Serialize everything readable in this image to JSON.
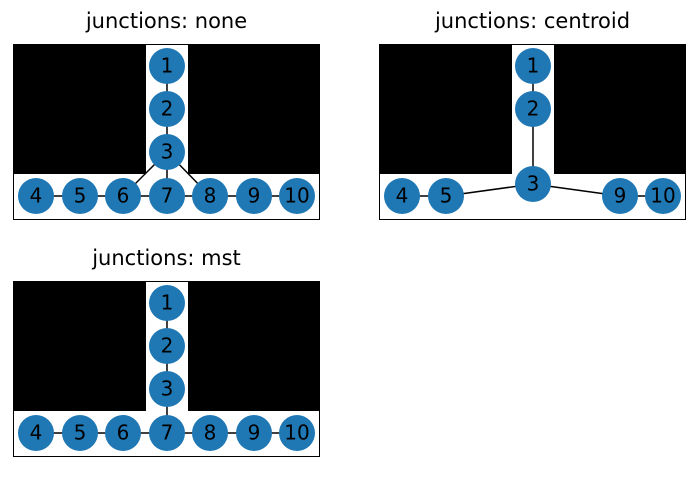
{
  "colors": {
    "node": "#1f77b4",
    "wall": "#000000",
    "free": "#ffffff",
    "edge": "#000000"
  },
  "panels": [
    {
      "title": "junctions: none",
      "nodes": [
        {
          "id": "1",
          "label": "1"
        },
        {
          "id": "2",
          "label": "2"
        },
        {
          "id": "3",
          "label": "3"
        },
        {
          "id": "4",
          "label": "4"
        },
        {
          "id": "5",
          "label": "5"
        },
        {
          "id": "6",
          "label": "6"
        },
        {
          "id": "7",
          "label": "7"
        },
        {
          "id": "8",
          "label": "8"
        },
        {
          "id": "9",
          "label": "9"
        },
        {
          "id": "10",
          "label": "10"
        }
      ],
      "edges": [
        [
          "1",
          "2"
        ],
        [
          "2",
          "3"
        ],
        [
          "3",
          "6"
        ],
        [
          "3",
          "7"
        ],
        [
          "3",
          "8"
        ],
        [
          "4",
          "5"
        ],
        [
          "5",
          "6"
        ],
        [
          "6",
          "7"
        ],
        [
          "7",
          "8"
        ],
        [
          "8",
          "9"
        ],
        [
          "9",
          "10"
        ]
      ]
    },
    {
      "title": "junctions: centroid",
      "nodes": [
        {
          "id": "1",
          "label": "1"
        },
        {
          "id": "2",
          "label": "2"
        },
        {
          "id": "3",
          "label": "3"
        },
        {
          "id": "4",
          "label": "4"
        },
        {
          "id": "5",
          "label": "5"
        },
        {
          "id": "9",
          "label": "9"
        },
        {
          "id": "10",
          "label": "10"
        }
      ],
      "edges": [
        [
          "1",
          "2"
        ],
        [
          "2",
          "3"
        ],
        [
          "3",
          "5"
        ],
        [
          "3",
          "9"
        ],
        [
          "4",
          "5"
        ],
        [
          "9",
          "10"
        ]
      ]
    },
    {
      "title": "junctions: mst",
      "nodes": [
        {
          "id": "1",
          "label": "1"
        },
        {
          "id": "2",
          "label": "2"
        },
        {
          "id": "3",
          "label": "3"
        },
        {
          "id": "4",
          "label": "4"
        },
        {
          "id": "5",
          "label": "5"
        },
        {
          "id": "6",
          "label": "6"
        },
        {
          "id": "7",
          "label": "7"
        },
        {
          "id": "8",
          "label": "8"
        },
        {
          "id": "9",
          "label": "9"
        },
        {
          "id": "10",
          "label": "10"
        }
      ],
      "edges": [
        [
          "1",
          "2"
        ],
        [
          "2",
          "3"
        ],
        [
          "3",
          "7"
        ],
        [
          "4",
          "5"
        ],
        [
          "5",
          "6"
        ],
        [
          "6",
          "7"
        ],
        [
          "7",
          "8"
        ],
        [
          "8",
          "9"
        ],
        [
          "9",
          "10"
        ]
      ]
    }
  ]
}
